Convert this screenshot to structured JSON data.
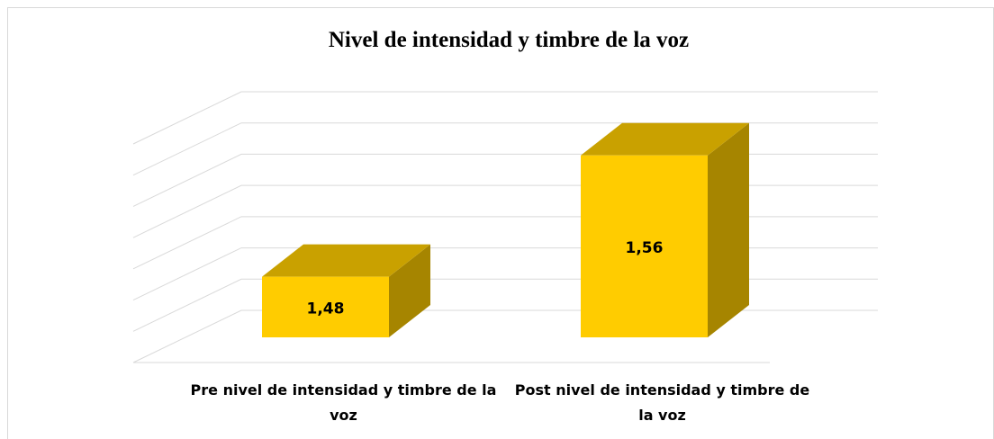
{
  "chart_data": {
    "type": "bar3d",
    "title": "Nivel de intensidad y timbre de la voz",
    "categories": [
      "Pre nivel de intensidad y timbre de la voz",
      "Post nivel de intensidad y timbre de la voz"
    ],
    "values": [
      1.48,
      1.56
    ],
    "value_labels": [
      "1,48",
      "1,56"
    ],
    "color": "#ffcc00",
    "ylim": [
      1.44,
      1.58
    ],
    "yticks": [
      1.44,
      1.46,
      1.48,
      1.5,
      1.52,
      1.54,
      1.56,
      1.58
    ],
    "grid": true
  }
}
